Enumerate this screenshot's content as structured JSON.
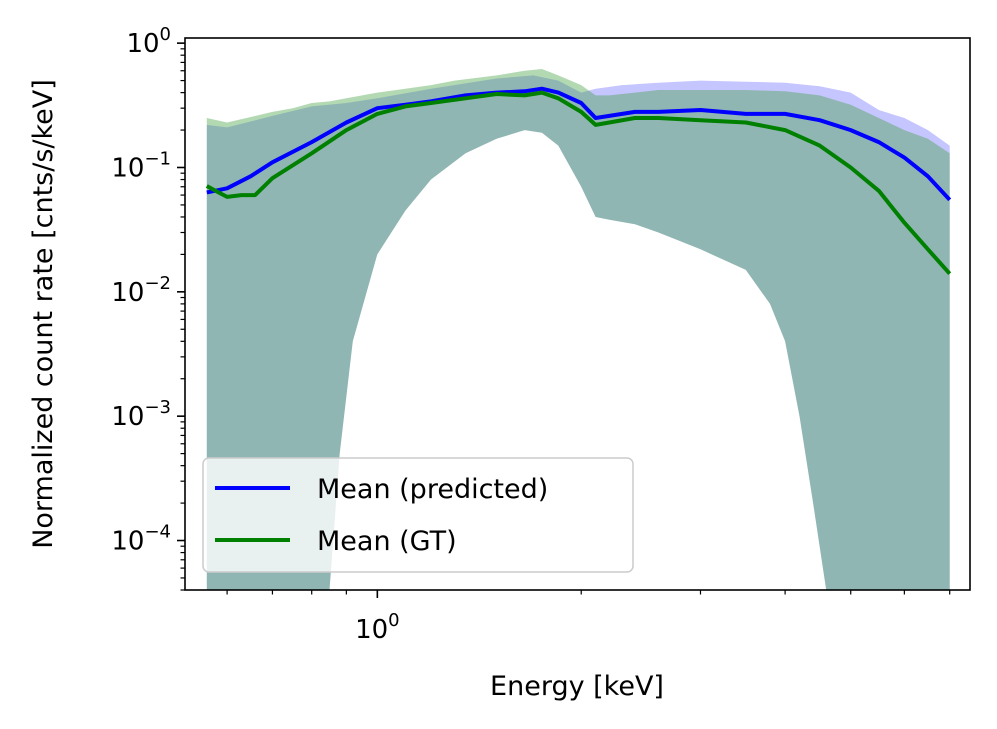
{
  "chart_data": {
    "type": "line",
    "xlabel": "Energy [keV]",
    "ylabel": "Normalized count rate [cnts/s/keV]",
    "xscale": "log",
    "yscale": "log",
    "xlim": [
      0.52,
      7.5
    ],
    "ylim": [
      4e-05,
      1.1
    ],
    "x_ticks": [
      {
        "value": 1,
        "mantissa": "10",
        "exponent": "0"
      }
    ],
    "y_ticks": [
      {
        "value": 1,
        "mantissa": "10",
        "exponent": "0"
      },
      {
        "value": 0.1,
        "mantissa": "10",
        "exponent": "−1"
      },
      {
        "value": 0.01,
        "mantissa": "10",
        "exponent": "−2"
      },
      {
        "value": 0.001,
        "mantissa": "10",
        "exponent": "−3"
      },
      {
        "value": 0.0001,
        "mantissa": "10",
        "exponent": "−4"
      }
    ],
    "legend": {
      "position": "lower-left"
    },
    "series": [
      {
        "name": "Mean (predicted)",
        "color": "#0000ff",
        "x": [
          0.56,
          0.6,
          0.65,
          0.7,
          0.8,
          0.9,
          1.0,
          1.1,
          1.2,
          1.35,
          1.5,
          1.65,
          1.75,
          1.85,
          2.0,
          2.1,
          2.2,
          2.4,
          2.6,
          3.0,
          3.5,
          4.0,
          4.5,
          5.0,
          5.5,
          6.0,
          6.5,
          7.0
        ],
        "y": [
          0.063,
          0.068,
          0.085,
          0.11,
          0.16,
          0.23,
          0.3,
          0.32,
          0.34,
          0.38,
          0.4,
          0.41,
          0.43,
          0.4,
          0.33,
          0.25,
          0.26,
          0.28,
          0.28,
          0.29,
          0.27,
          0.27,
          0.24,
          0.2,
          0.16,
          0.12,
          0.085,
          0.055
        ]
      },
      {
        "name": "Mean (GT)",
        "color": "#008000",
        "x": [
          0.56,
          0.58,
          0.6,
          0.63,
          0.66,
          0.7,
          0.8,
          0.9,
          1.0,
          1.1,
          1.2,
          1.35,
          1.5,
          1.65,
          1.75,
          1.85,
          2.0,
          2.1,
          2.2,
          2.4,
          2.6,
          3.0,
          3.5,
          4.0,
          4.5,
          5.0,
          5.5,
          6.0,
          6.5,
          7.0
        ],
        "y": [
          0.071,
          0.064,
          0.058,
          0.06,
          0.06,
          0.082,
          0.13,
          0.2,
          0.27,
          0.31,
          0.33,
          0.36,
          0.39,
          0.38,
          0.4,
          0.36,
          0.28,
          0.22,
          0.23,
          0.25,
          0.25,
          0.24,
          0.23,
          0.2,
          0.15,
          0.1,
          0.065,
          0.036,
          0.022,
          0.014
        ]
      }
    ],
    "bands": [
      {
        "series": "Mean (predicted)",
        "color": "#4040ff",
        "opacity": 0.3,
        "x": [
          0.56,
          0.6,
          0.7,
          0.8,
          0.9,
          1.0,
          1.2,
          1.5,
          1.7,
          1.85,
          2.0,
          2.1,
          2.3,
          2.6,
          3.0,
          3.5,
          4.0,
          4.5,
          5.0,
          5.5,
          6.0,
          6.5,
          7.0
        ],
        "upper": [
          0.22,
          0.21,
          0.26,
          0.31,
          0.33,
          0.36,
          0.43,
          0.52,
          0.55,
          0.5,
          0.4,
          0.43,
          0.46,
          0.48,
          0.5,
          0.49,
          0.48,
          0.45,
          0.4,
          0.29,
          0.25,
          0.2,
          0.15
        ],
        "lower": [
          4e-05,
          4e-05,
          4e-05,
          4e-05,
          4e-05,
          4e-05,
          4e-05,
          4e-05,
          4e-05,
          4e-05,
          4e-05,
          4e-05,
          4e-05,
          4e-05,
          4e-05,
          4e-05,
          4e-05,
          4e-05,
          4e-05,
          4e-05,
          4e-05,
          4e-05,
          4e-05
        ]
      },
      {
        "series": "Mean (GT)",
        "color": "#40a040",
        "opacity": 0.4,
        "x": [
          0.56,
          0.6,
          0.7,
          0.75,
          0.8,
          0.85,
          0.9,
          1.0,
          1.1,
          1.2,
          1.3,
          1.5,
          1.65,
          1.75,
          1.85,
          2.0,
          2.1,
          2.2,
          2.4,
          2.6,
          3.0,
          3.5,
          4.0,
          4.5,
          5.0,
          5.5,
          6.0,
          6.5,
          7.0
        ],
        "upper": [
          0.25,
          0.23,
          0.28,
          0.3,
          0.33,
          0.34,
          0.36,
          0.4,
          0.43,
          0.46,
          0.5,
          0.55,
          0.6,
          0.62,
          0.55,
          0.46,
          0.38,
          0.38,
          0.4,
          0.42,
          0.42,
          0.42,
          0.41,
          0.38,
          0.32,
          0.25,
          0.2,
          0.17,
          0.13
        ],
        "lower": [
          4e-05,
          4e-05,
          4e-05,
          4e-05,
          4e-05,
          4e-05,
          4e-05,
          4e-05,
          4e-05,
          4e-05,
          4e-05,
          4e-05,
          4e-05,
          4e-05,
          4e-05,
          4e-05,
          4e-05,
          4e-05,
          4e-05,
          4e-05,
          4e-05,
          4e-05,
          4e-05,
          4e-05,
          4e-05,
          4e-05,
          4e-05,
          4e-05,
          4e-05
        ]
      }
    ],
    "inner_envelope": {
      "color": "#ffffff",
      "x": [
        0.85,
        0.88,
        0.92,
        1.0,
        1.1,
        1.2,
        1.35,
        1.5,
        1.65,
        1.75,
        1.85,
        2.0,
        2.1,
        2.2,
        2.4,
        2.6,
        3.0,
        3.5,
        3.8,
        4.0,
        4.2,
        4.4,
        4.6
      ],
      "y": [
        4e-05,
        0.0005,
        0.004,
        0.02,
        0.045,
        0.08,
        0.13,
        0.17,
        0.2,
        0.19,
        0.15,
        0.07,
        0.04,
        0.038,
        0.035,
        0.03,
        0.022,
        0.015,
        0.008,
        0.004,
        0.001,
        0.0002,
        4e-05
      ]
    }
  }
}
